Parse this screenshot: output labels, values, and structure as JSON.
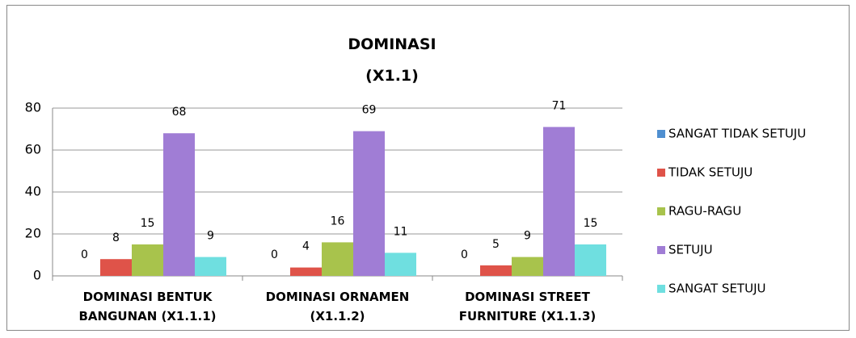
{
  "chart_data": {
    "type": "bar",
    "title": "DOMINASI (X1.1)",
    "categories": [
      "DOMINASI BENTUK BANGUNAN (X1.1.1)",
      "DOMINASI ORNAMEN (X1.1.2)",
      "DOMINASI STREET FURNITURE (X1.1.3)"
    ],
    "series": [
      {
        "name": "SANGAT TIDAK SETUJU",
        "color": "#4f8fd0",
        "values": [
          0,
          0,
          0
        ]
      },
      {
        "name": "TIDAK SETUJU",
        "color": "#df5349",
        "values": [
          8,
          4,
          5
        ]
      },
      {
        "name": "RAGU-RAGU",
        "color": "#a8c34c",
        "values": [
          15,
          16,
          9
        ]
      },
      {
        "name": "SETUJU",
        "color": "#a07dd5",
        "values": [
          68,
          69,
          71
        ]
      },
      {
        "name": "SANGAT SETUJU",
        "color": "#6fdfe0",
        "values": [
          9,
          11,
          15
        ]
      }
    ],
    "ylim": [
      0,
      80
    ],
    "yticks": [
      0,
      20,
      40,
      60,
      80
    ],
    "grid": true,
    "legend": "right"
  }
}
